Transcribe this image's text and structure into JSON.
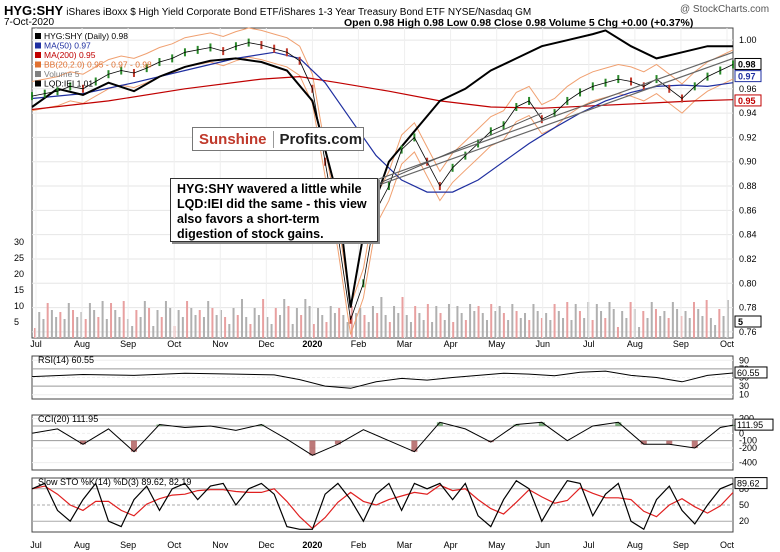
{
  "header": {
    "symbol": "HYG:SHY",
    "description": "iShares iBoxx $ High Yield Corporate Bond ETF/iShares 1-3 Year Treasury Bond ETF",
    "exchange": "NYSE/Nasdaq GM",
    "date": "7-Oct-2020",
    "ohlc": "Open 0.98  High 0.98  Low 0.98  Close 0.98  Volume 5  Chg +0.00 (+0.37%)",
    "watermark": "@ StockCharts.com"
  },
  "logo": {
    "part1": "Sunshine",
    "part2": "Profits.com"
  },
  "callout": "HYG:SHY wavered a little while LQD:IEI did the same - this view also favors a short-term digestion of stock gains.",
  "colors": {
    "bg": "#ffffff",
    "price": "#000000",
    "ma50": "#1f2fa0",
    "ma200": "#c00000",
    "bb": "#f0a070",
    "lqd": "#000000",
    "up": "#2a8a2a",
    "down": "#c0392b",
    "volume": "#b0b0b0",
    "stoK": "#000000",
    "stoD": "#e02020"
  },
  "chart_data": [
    {
      "type": "line",
      "panel": "price",
      "legend": [
        {
          "label": "HYG:SHY (Daily) 0.98",
          "color": "#000000"
        },
        {
          "label": "MA(50) 0.97",
          "color": "#1f2fa0"
        },
        {
          "label": "MA(200) 0.95",
          "color": "#c00000"
        },
        {
          "label": "BB(20,2.0) 0.95 - 0.97 - 0.98",
          "color": "#e07030"
        },
        {
          "label": "Volume 5",
          "color": "#808080"
        },
        {
          "label": "LQD:IEI 1.01",
          "color": "#000000"
        }
      ],
      "x_labels": [
        "Jul",
        "Aug",
        "Sep",
        "Oct",
        "Nov",
        "Dec",
        "2020",
        "Feb",
        "Mar",
        "Apr",
        "May",
        "Jun",
        "Jul",
        "Aug",
        "Sep",
        "Oct"
      ],
      "y_ticks": [
        "1.00",
        "0.98",
        "0.96",
        "0.94",
        "0.92",
        "0.90",
        "0.88",
        "0.86",
        "0.84",
        "0.82",
        "0.80",
        "0.78",
        "0.76"
      ],
      "volume_ticks": [
        "30",
        "25",
        "20",
        "15",
        "10",
        "5"
      ],
      "ylim": [
        0.755,
        1.01
      ],
      "hygshy": [
        [
          0,
          0.954
        ],
        [
          1,
          0.956
        ],
        [
          2,
          0.958
        ],
        [
          3,
          0.962
        ],
        [
          4,
          0.96
        ],
        [
          5,
          0.966
        ],
        [
          6,
          0.972
        ],
        [
          7,
          0.975
        ],
        [
          8,
          0.973
        ],
        [
          9,
          0.977
        ],
        [
          10,
          0.982
        ],
        [
          11,
          0.985
        ],
        [
          12,
          0.99
        ],
        [
          13,
          0.992
        ],
        [
          14,
          0.994
        ],
        [
          15,
          0.991
        ],
        [
          16,
          0.995
        ],
        [
          17,
          0.998
        ],
        [
          18,
          0.996
        ],
        [
          19,
          0.993
        ],
        [
          20,
          0.99
        ],
        [
          21,
          0.983
        ],
        [
          22,
          0.96
        ],
        [
          23,
          0.9
        ],
        [
          24,
          0.84
        ],
        [
          25,
          0.77
        ],
        [
          26,
          0.8
        ],
        [
          27,
          0.86
        ],
        [
          28,
          0.88
        ],
        [
          29,
          0.91
        ],
        [
          30,
          0.92
        ],
        [
          31,
          0.9
        ],
        [
          32,
          0.88
        ],
        [
          33,
          0.895
        ],
        [
          34,
          0.905
        ],
        [
          35,
          0.915
        ],
        [
          36,
          0.925
        ],
        [
          37,
          0.93
        ],
        [
          38,
          0.945
        ],
        [
          39,
          0.95
        ],
        [
          40,
          0.935
        ],
        [
          41,
          0.94
        ],
        [
          42,
          0.95
        ],
        [
          43,
          0.957
        ],
        [
          44,
          0.962
        ],
        [
          45,
          0.965
        ],
        [
          46,
          0.968
        ],
        [
          47,
          0.966
        ],
        [
          48,
          0.962
        ],
        [
          49,
          0.968
        ],
        [
          50,
          0.96
        ],
        [
          51,
          0.952
        ],
        [
          52,
          0.962
        ],
        [
          53,
          0.97
        ],
        [
          54,
          0.975
        ],
        [
          55,
          0.98
        ]
      ],
      "ma50": [
        [
          0,
          0.952
        ],
        [
          4,
          0.956
        ],
        [
          8,
          0.965
        ],
        [
          12,
          0.975
        ],
        [
          16,
          0.985
        ],
        [
          19,
          0.99
        ],
        [
          21,
          0.985
        ],
        [
          23,
          0.965
        ],
        [
          25,
          0.935
        ],
        [
          27,
          0.905
        ],
        [
          29,
          0.885
        ],
        [
          31,
          0.875
        ],
        [
          33,
          0.875
        ],
        [
          35,
          0.885
        ],
        [
          37,
          0.9
        ],
        [
          39,
          0.915
        ],
        [
          41,
          0.928
        ],
        [
          43,
          0.94
        ],
        [
          45,
          0.95
        ],
        [
          47,
          0.957
        ],
        [
          49,
          0.962
        ],
        [
          51,
          0.963
        ],
        [
          53,
          0.962
        ],
        [
          55,
          0.965
        ]
      ],
      "ma200": [
        [
          0,
          0.943
        ],
        [
          6,
          0.95
        ],
        [
          12,
          0.96
        ],
        [
          18,
          0.968
        ],
        [
          21,
          0.97
        ],
        [
          24,
          0.965
        ],
        [
          28,
          0.958
        ],
        [
          32,
          0.95
        ],
        [
          36,
          0.945
        ],
        [
          40,
          0.944
        ],
        [
          44,
          0.946
        ],
        [
          48,
          0.948
        ],
        [
          52,
          0.95
        ],
        [
          55,
          0.951
        ]
      ],
      "lqdiei": [
        [
          0,
          0.945
        ],
        [
          2,
          0.96
        ],
        [
          4,
          0.955
        ],
        [
          6,
          0.965
        ],
        [
          8,
          0.958
        ],
        [
          10,
          0.97
        ],
        [
          12,
          0.978
        ],
        [
          14,
          0.983
        ],
        [
          16,
          0.985
        ],
        [
          18,
          0.982
        ],
        [
          20,
          0.975
        ],
        [
          22,
          0.95
        ],
        [
          24,
          0.87
        ],
        [
          25,
          0.78
        ],
        [
          26,
          0.84
        ],
        [
          28,
          0.9
        ],
        [
          30,
          0.925
        ],
        [
          32,
          0.95
        ],
        [
          34,
          0.96
        ],
        [
          36,
          0.975
        ],
        [
          38,
          0.985
        ],
        [
          40,
          0.995
        ],
        [
          42,
          1.0
        ],
        [
          44,
          1.005
        ],
        [
          45,
          1.008
        ],
        [
          47,
          0.995
        ],
        [
          49,
          0.985
        ],
        [
          51,
          0.99
        ],
        [
          53,
          0.995
        ],
        [
          55,
          0.995
        ]
      ],
      "annotations": [
        {
          "label": "0.98",
          "color": "#000000"
        },
        {
          "label": "0.97",
          "color": "#1f2fa0"
        },
        {
          "label": "0.95",
          "color": "#c00000"
        },
        {
          "label": "5",
          "color": "#000000"
        }
      ]
    },
    {
      "type": "line",
      "panel": "rsi",
      "legend": "RSI(14) 60.55",
      "y_ticks": [
        "90",
        "70",
        "50",
        "30",
        "10"
      ],
      "ylim": [
        0,
        100
      ],
      "values": [
        [
          0,
          52
        ],
        [
          4,
          57
        ],
        [
          8,
          55
        ],
        [
          12,
          60
        ],
        [
          16,
          58
        ],
        [
          19,
          56
        ],
        [
          21,
          45
        ],
        [
          23,
          30
        ],
        [
          25,
          25
        ],
        [
          27,
          40
        ],
        [
          29,
          48
        ],
        [
          31,
          44
        ],
        [
          33,
          50
        ],
        [
          35,
          55
        ],
        [
          37,
          60
        ],
        [
          39,
          58
        ],
        [
          41,
          54
        ],
        [
          43,
          62
        ],
        [
          45,
          65
        ],
        [
          47,
          55
        ],
        [
          49,
          50
        ],
        [
          51,
          40
        ],
        [
          53,
          55
        ],
        [
          55,
          60.55
        ]
      ],
      "current": "60.55"
    },
    {
      "type": "line",
      "panel": "cci",
      "legend": "CCI(20) 111.95",
      "y_ticks": [
        "200",
        "100",
        "0",
        "-100",
        "-200",
        "-400"
      ],
      "ylim": [
        -500,
        250
      ],
      "values": [
        [
          0,
          0
        ],
        [
          2,
          60
        ],
        [
          4,
          -150
        ],
        [
          6,
          60
        ],
        [
          8,
          -250
        ],
        [
          10,
          120
        ],
        [
          12,
          80
        ],
        [
          14,
          100
        ],
        [
          16,
          40
        ],
        [
          18,
          120
        ],
        [
          20,
          -80
        ],
        [
          22,
          -300
        ],
        [
          24,
          -150
        ],
        [
          26,
          50
        ],
        [
          28,
          -100
        ],
        [
          30,
          -250
        ],
        [
          32,
          150
        ],
        [
          34,
          60
        ],
        [
          36,
          -120
        ],
        [
          38,
          120
        ],
        [
          40,
          150
        ],
        [
          42,
          -100
        ],
        [
          44,
          100
        ],
        [
          46,
          150
        ],
        [
          48,
          -150
        ],
        [
          50,
          -150
        ],
        [
          52,
          -200
        ],
        [
          54,
          80
        ],
        [
          55,
          111.95
        ]
      ],
      "current": "111.95"
    },
    {
      "type": "line",
      "panel": "sto",
      "legend": "Slow STO %K(14) %D(3) 89.62, 82.19",
      "series": [
        {
          "name": "%K",
          "color": "#000000"
        },
        {
          "name": "%D",
          "color": "#e02020"
        }
      ],
      "y_ticks": [
        "80",
        "50",
        "20"
      ],
      "ylim": [
        0,
        100
      ],
      "k": [
        [
          0,
          80
        ],
        [
          1,
          90
        ],
        [
          2,
          40
        ],
        [
          3,
          20
        ],
        [
          4,
          60
        ],
        [
          5,
          90
        ],
        [
          6,
          20
        ],
        [
          7,
          10
        ],
        [
          8,
          60
        ],
        [
          9,
          85
        ],
        [
          10,
          40
        ],
        [
          11,
          80
        ],
        [
          12,
          90
        ],
        [
          13,
          60
        ],
        [
          14,
          85
        ],
        [
          15,
          90
        ],
        [
          16,
          50
        ],
        [
          17,
          80
        ],
        [
          18,
          90
        ],
        [
          19,
          70
        ],
        [
          20,
          10
        ],
        [
          21,
          5
        ],
        [
          22,
          5
        ],
        [
          23,
          70
        ],
        [
          24,
          90
        ],
        [
          25,
          60
        ],
        [
          26,
          20
        ],
        [
          27,
          70
        ],
        [
          28,
          90
        ],
        [
          29,
          40
        ],
        [
          30,
          90
        ],
        [
          31,
          80
        ],
        [
          32,
          90
        ],
        [
          33,
          60
        ],
        [
          34,
          90
        ],
        [
          35,
          30
        ],
        [
          36,
          10
        ],
        [
          37,
          60
        ],
        [
          38,
          95
        ],
        [
          39,
          80
        ],
        [
          40,
          20
        ],
        [
          41,
          60
        ],
        [
          42,
          95
        ],
        [
          43,
          90
        ],
        [
          44,
          30
        ],
        [
          45,
          70
        ],
        [
          46,
          90
        ],
        [
          47,
          20
        ],
        [
          48,
          5
        ],
        [
          49,
          60
        ],
        [
          50,
          85
        ],
        [
          51,
          40
        ],
        [
          52,
          15
        ],
        [
          53,
          50
        ],
        [
          54,
          80
        ],
        [
          55,
          89.62
        ]
      ],
      "current_k": "89.62",
      "current_d": "82.19"
    }
  ]
}
